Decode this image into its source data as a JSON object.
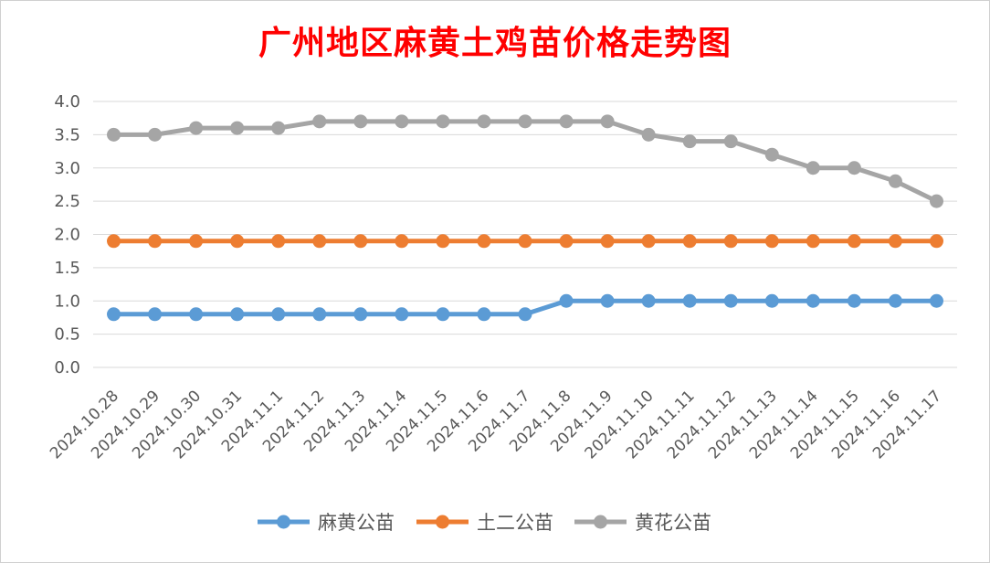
{
  "chart_data": {
    "type": "line",
    "title": "广州地区麻黄土鸡苗价格走势图",
    "xlabel": "",
    "ylabel": "",
    "categories": [
      "2024.10.28",
      "2024.10.29",
      "2024.10.30",
      "2024.10.31",
      "2024.11.1",
      "2024.11.2",
      "2024.11.3",
      "2024.11.4",
      "2024.11.5",
      "2024.11.6",
      "2024.11.7",
      "2024.11.8",
      "2024.11.9",
      "2024.11.10",
      "2024.11.11",
      "2024.11.12",
      "2024.11.13",
      "2024.11.14",
      "2024.11.15",
      "2024.11.16",
      "2024.11.17"
    ],
    "ylim": [
      0,
      4
    ],
    "yticks": [
      "0.0",
      "0.5",
      "1.0",
      "1.5",
      "2.0",
      "2.5",
      "3.0",
      "3.5",
      "4.0"
    ],
    "grid": true,
    "legend_position": "bottom",
    "series": [
      {
        "name": "麻黄公苗",
        "color": "#5b9bd5",
        "values": [
          0.8,
          0.8,
          0.8,
          0.8,
          0.8,
          0.8,
          0.8,
          0.8,
          0.8,
          0.8,
          0.8,
          1.0,
          1.0,
          1.0,
          1.0,
          1.0,
          1.0,
          1.0,
          1.0,
          1.0,
          1.0
        ]
      },
      {
        "name": "土二公苗",
        "color": "#ed7d31",
        "values": [
          1.9,
          1.9,
          1.9,
          1.9,
          1.9,
          1.9,
          1.9,
          1.9,
          1.9,
          1.9,
          1.9,
          1.9,
          1.9,
          1.9,
          1.9,
          1.9,
          1.9,
          1.9,
          1.9,
          1.9,
          1.9
        ]
      },
      {
        "name": "黄花公苗",
        "color": "#a5a5a5",
        "values": [
          3.5,
          3.5,
          3.6,
          3.6,
          3.6,
          3.7,
          3.7,
          3.7,
          3.7,
          3.7,
          3.7,
          3.7,
          3.7,
          3.5,
          3.4,
          3.4,
          3.2,
          3.0,
          3.0,
          2.8,
          2.5
        ]
      }
    ]
  }
}
